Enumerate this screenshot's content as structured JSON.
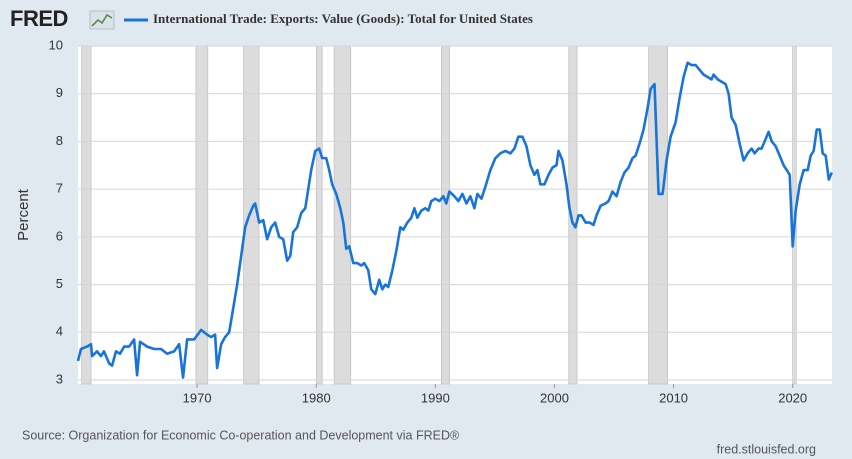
{
  "chart_data": {
    "type": "line",
    "logo": "FRED",
    "ylabel": "Percent",
    "source": "Source: Organization for Economic Co-operation and Development via FRED®",
    "credit": "fred.stlouisfed.org",
    "xlim": [
      1960,
      2023.3
    ],
    "xticks": [
      1970,
      1980,
      1990,
      2000,
      2010,
      2020
    ],
    "ylim": [
      3,
      10
    ],
    "yticks": [
      3,
      4,
      5,
      6,
      7,
      8,
      9,
      10
    ],
    "grid": true,
    "recessions": [
      [
        1960.3,
        1961.1
      ],
      [
        1969.9,
        1970.9
      ],
      [
        1973.9,
        1975.2
      ],
      [
        1980.0,
        1980.5
      ],
      [
        1981.5,
        1982.9
      ],
      [
        1990.5,
        1991.2
      ],
      [
        2001.2,
        2001.9
      ],
      [
        2007.9,
        2009.5
      ],
      [
        2020.0,
        2020.3
      ]
    ],
    "recession_color": "#dcdcdc",
    "series": [
      {
        "name": "International Trade: Exports: Value (Goods): Total for United States",
        "color": "#1874d9",
        "x": [
          1960.0,
          1960.25,
          1960.76,
          1961.09,
          1961.18,
          1961.6,
          1961.93,
          1962.18,
          1962.61,
          1962.86,
          1963.19,
          1963.53,
          1963.87,
          1964.29,
          1964.71,
          1964.96,
          1965.21,
          1965.8,
          1966.39,
          1966.97,
          1967.48,
          1968.07,
          1968.49,
          1968.82,
          1969.16,
          1969.75,
          1970.34,
          1970.84,
          1971.18,
          1971.51,
          1971.68,
          1972.02,
          1972.35,
          1972.69,
          1973.03,
          1973.36,
          1973.7,
          1974.03,
          1974.37,
          1974.71,
          1974.87,
          1975.21,
          1975.55,
          1975.88,
          1976.22,
          1976.55,
          1976.89,
          1977.23,
          1977.56,
          1977.82,
          1978.07,
          1978.4,
          1978.74,
          1979.08,
          1979.33,
          1979.58,
          1979.92,
          1980.25,
          1980.5,
          1980.84,
          1981.09,
          1981.34,
          1981.68,
          1982.02,
          1982.27,
          1982.52,
          1982.77,
          1983.11,
          1983.45,
          1983.78,
          1984.03,
          1984.37,
          1984.62,
          1984.96,
          1985.29,
          1985.55,
          1985.8,
          1986.05,
          1986.39,
          1986.72,
          1987.06,
          1987.31,
          1987.65,
          1987.98,
          1988.24,
          1988.49,
          1988.82,
          1989.16,
          1989.41,
          1989.66,
          1990.0,
          1990.34,
          1990.67,
          1990.92,
          1991.18,
          1991.6,
          1991.93,
          1992.27,
          1992.61,
          1992.94,
          1993.28,
          1993.53,
          1993.87,
          1994.2,
          1994.62,
          1995.04,
          1995.46,
          1995.88,
          1996.3,
          1996.64,
          1996.97,
          1997.31,
          1997.65,
          1997.98,
          1998.32,
          1998.57,
          1998.82,
          1999.16,
          1999.5,
          1999.83,
          2000.17,
          2000.34,
          2000.67,
          2001.01,
          2001.26,
          2001.51,
          2001.76,
          2002.02,
          2002.27,
          2002.61,
          2002.94,
          2003.28,
          2003.53,
          2003.87,
          2004.29,
          2004.54,
          2004.87,
          2005.21,
          2005.55,
          2005.88,
          2006.22,
          2006.55,
          2006.81,
          2007.14,
          2007.48,
          2007.82,
          2008.07,
          2008.4,
          2008.74,
          2009.08,
          2009.41,
          2009.75,
          2010.17,
          2010.5,
          2010.84,
          2011.18,
          2011.51,
          2011.85,
          2012.18,
          2012.52,
          2012.86,
          2013.19,
          2013.36,
          2013.7,
          2014.03,
          2014.37,
          2014.62,
          2014.87,
          2015.21,
          2015.55,
          2015.88,
          2016.22,
          2016.55,
          2016.81,
          2017.14,
          2017.39,
          2017.73,
          2017.98,
          2018.24,
          2018.57,
          2018.91,
          2019.24,
          2019.5,
          2019.75,
          2020.0,
          2020.25,
          2020.59,
          2020.92,
          2021.26,
          2021.51,
          2021.76,
          2022.02,
          2022.27,
          2022.52,
          2022.77,
          2023.03,
          2023.28
        ],
        "values": [
          3.4,
          3.65,
          3.7,
          3.75,
          3.5,
          3.6,
          3.5,
          3.6,
          3.35,
          3.3,
          3.6,
          3.55,
          3.7,
          3.7,
          3.85,
          3.1,
          3.8,
          3.7,
          3.65,
          3.65,
          3.55,
          3.6,
          3.75,
          3.05,
          3.85,
          3.85,
          4.05,
          3.95,
          3.9,
          3.95,
          3.25,
          3.75,
          3.9,
          4.0,
          4.5,
          5.0,
          5.6,
          6.2,
          6.45,
          6.65,
          6.7,
          6.3,
          6.35,
          5.95,
          6.2,
          6.3,
          6.0,
          5.95,
          5.5,
          5.6,
          6.1,
          6.2,
          6.5,
          6.6,
          7.0,
          7.4,
          7.8,
          7.85,
          7.65,
          7.65,
          7.4,
          7.1,
          6.9,
          6.6,
          6.3,
          5.75,
          5.8,
          5.45,
          5.45,
          5.4,
          5.45,
          5.3,
          4.9,
          4.8,
          5.1,
          4.9,
          5.0,
          4.95,
          5.3,
          5.7,
          6.2,
          6.15,
          6.3,
          6.4,
          6.6,
          6.4,
          6.55,
          6.6,
          6.55,
          6.75,
          6.8,
          6.75,
          6.85,
          6.7,
          6.95,
          6.85,
          6.75,
          6.9,
          6.7,
          6.85,
          6.6,
          6.9,
          6.8,
          7.05,
          7.4,
          7.65,
          7.75,
          7.8,
          7.75,
          7.85,
          8.1,
          8.1,
          7.9,
          7.5,
          7.3,
          7.4,
          7.1,
          7.1,
          7.3,
          7.45,
          7.5,
          7.8,
          7.6,
          7.1,
          6.6,
          6.3,
          6.2,
          6.45,
          6.45,
          6.3,
          6.3,
          6.25,
          6.45,
          6.65,
          6.7,
          6.75,
          6.95,
          6.85,
          7.15,
          7.35,
          7.45,
          7.65,
          7.7,
          7.95,
          8.25,
          8.7,
          9.1,
          9.2,
          6.9,
          6.9,
          7.6,
          8.1,
          8.4,
          8.9,
          9.35,
          9.65,
          9.6,
          9.6,
          9.5,
          9.4,
          9.35,
          9.3,
          9.4,
          9.3,
          9.25,
          9.2,
          9.0,
          8.5,
          8.35,
          7.95,
          7.6,
          7.75,
          7.85,
          7.75,
          7.85,
          7.85,
          8.05,
          8.2,
          8.0,
          7.9,
          7.7,
          7.5,
          7.4,
          7.3,
          5.8,
          6.55,
          7.1,
          7.4,
          7.4,
          7.7,
          7.8,
          8.25,
          8.25,
          7.75,
          7.7,
          7.2,
          7.35
        ]
      }
    ]
  }
}
